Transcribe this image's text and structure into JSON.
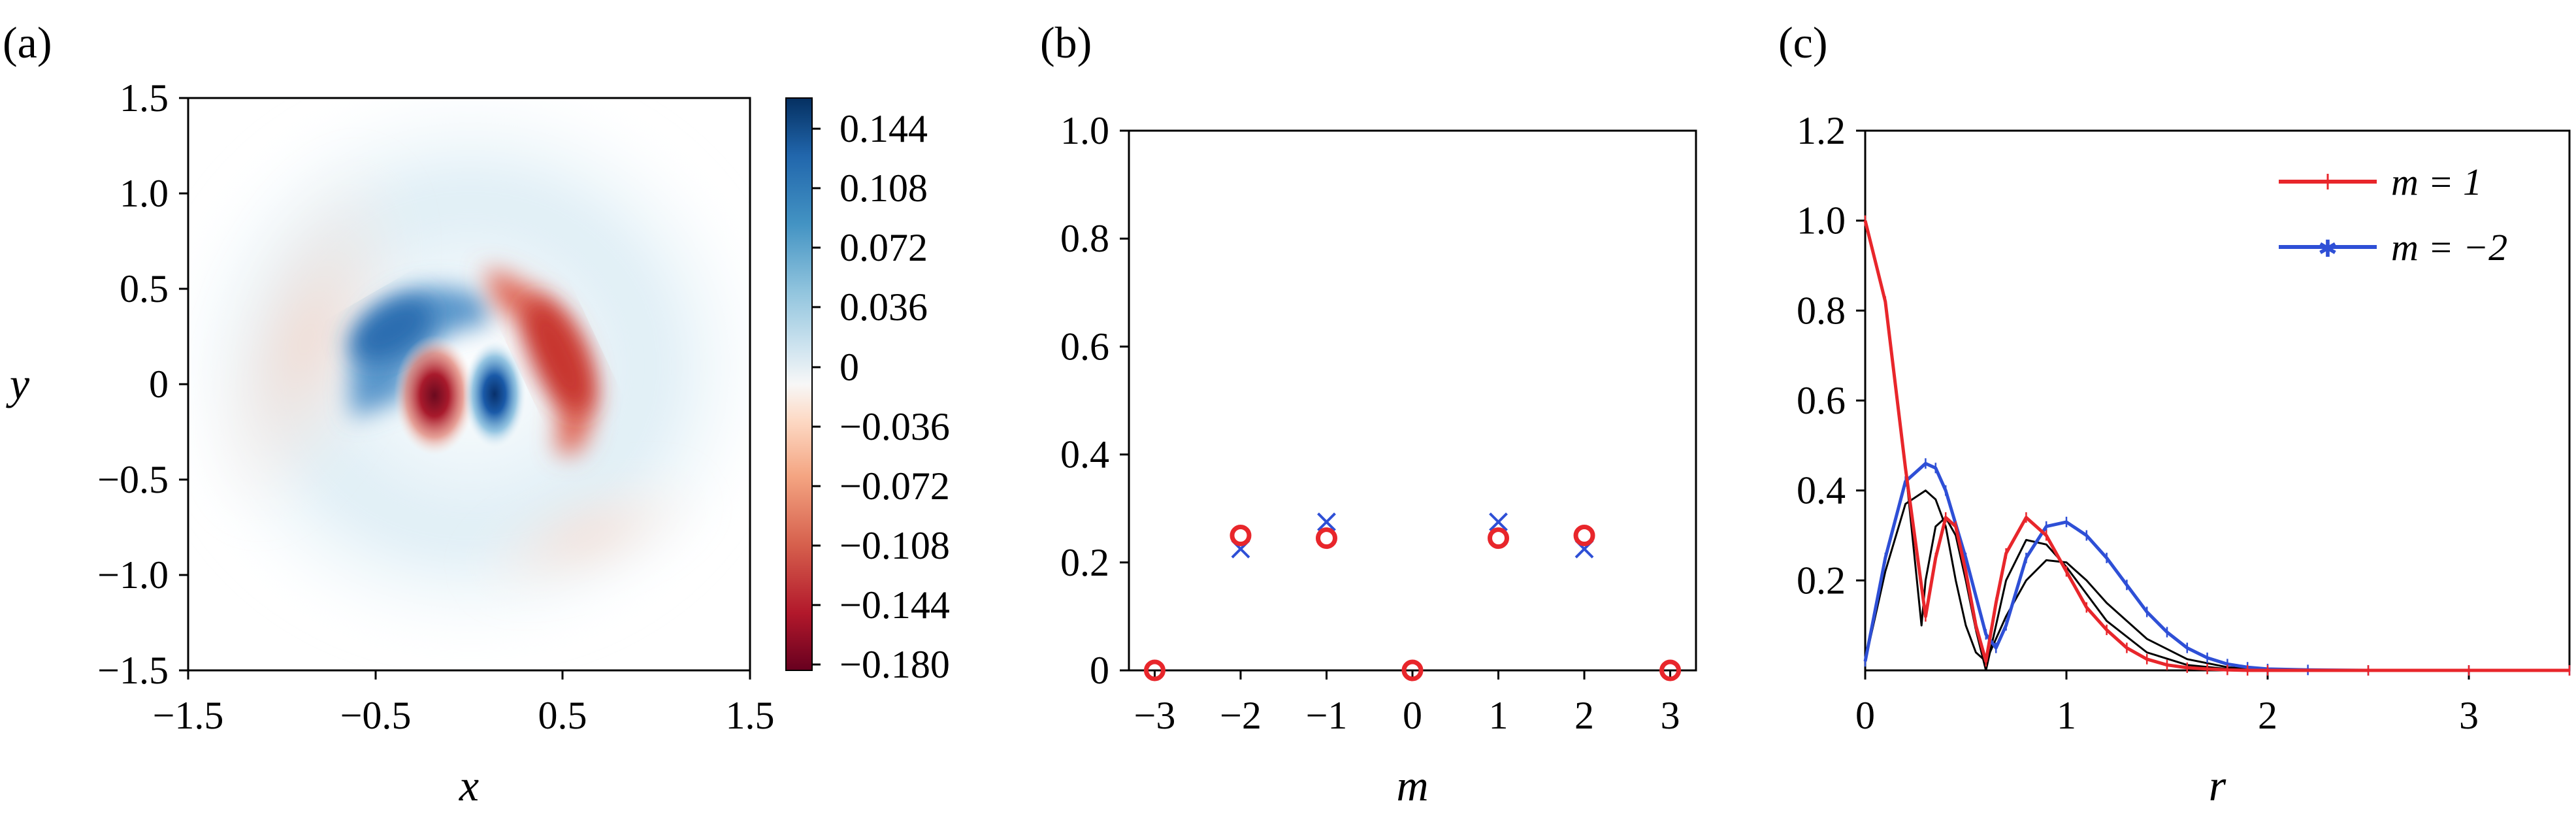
{
  "chart_data": [
    {
      "type": "heatmap",
      "panel_label": "(a)",
      "xlabel": "x",
      "ylabel": "y",
      "xlim": [
        -1.5,
        1.5
      ],
      "ylim": [
        -1.5,
        1.5
      ],
      "xticks": [
        "−1.5",
        "−0.5",
        "0.5",
        "1.5"
      ],
      "yticks": [
        "1.5",
        "1.0",
        "0.5",
        "0",
        "−0.5",
        "−1.0",
        "−1.5"
      ],
      "colorbar": {
        "ticks": [
          "0.144",
          "0.108",
          "0.072",
          "0.036",
          "0",
          "−0.036",
          "−0.072",
          "−0.108",
          "−0.144",
          "−0.180"
        ],
        "range": [
          -0.18,
          0.16
        ],
        "colors": [
          "#67001f",
          "#b2182b",
          "#d6604d",
          "#f4a582",
          "#fddbc7",
          "#f7f7f7",
          "#d1e5f0",
          "#92c5de",
          "#4393c3",
          "#2166ac",
          "#053061"
        ]
      },
      "features": [
        {
          "kind": "red core",
          "x": -0.18,
          "y": -0.05,
          "value": -0.18
        },
        {
          "kind": "blue core",
          "x": 0.15,
          "y": -0.05,
          "value": 0.15
        },
        {
          "kind": "blue arc",
          "x": -0.25,
          "y": 0.2,
          "value": 0.09
        },
        {
          "kind": "red arc",
          "x": 0.48,
          "y": 0.3,
          "value": -0.1
        }
      ]
    },
    {
      "type": "scatter",
      "panel_label": "(b)",
      "xlabel": "m",
      "ylabel": "",
      "xlim": [
        -3.3,
        3.3
      ],
      "ylim": [
        0,
        1.0
      ],
      "xticks": [
        "−3",
        "−2",
        "−1",
        "0",
        "1",
        "2",
        "3"
      ],
      "yticks": [
        "1.0",
        "0.8",
        "0.6",
        "0.4",
        "0.2",
        "0"
      ],
      "series": [
        {
          "marker": "circle",
          "color": "#e8262b",
          "x": [
            -3,
            -2,
            -1,
            0,
            1,
            2,
            3
          ],
          "values": [
            0.0,
            0.25,
            0.245,
            0.0,
            0.245,
            0.25,
            0.0
          ]
        },
        {
          "marker": "cross",
          "color": "#2e4fd6",
          "x": [
            -2,
            -1,
            1,
            2
          ],
          "values": [
            0.225,
            0.275,
            0.275,
            0.225
          ]
        }
      ]
    },
    {
      "type": "line",
      "panel_label": "(c)",
      "xlabel": "r",
      "ylabel": "",
      "xlim": [
        0,
        3.5
      ],
      "ylim": [
        0,
        1.2
      ],
      "xticks": [
        "0",
        "1",
        "2",
        "3"
      ],
      "yticks": [
        "1.2",
        "1.0",
        "0.8",
        "0.6",
        "0.4",
        "0.2"
      ],
      "legend_position": "top-right",
      "series": [
        {
          "name": "m = 1",
          "color": "#e8262b",
          "marker": "plus",
          "x": [
            0,
            0.1,
            0.2,
            0.3,
            0.35,
            0.4,
            0.45,
            0.5,
            0.55,
            0.6,
            0.65,
            0.7,
            0.8,
            0.9,
            1.0,
            1.1,
            1.2,
            1.3,
            1.4,
            1.5,
            1.6,
            1.7,
            1.8,
            1.9,
            2.0,
            2.5,
            3.0,
            3.5
          ],
          "values": [
            1.0,
            0.82,
            0.45,
            0.12,
            0.25,
            0.34,
            0.32,
            0.22,
            0.1,
            0.02,
            0.15,
            0.26,
            0.34,
            0.3,
            0.22,
            0.14,
            0.09,
            0.05,
            0.025,
            0.012,
            0.006,
            0.003,
            0.001,
            0.0,
            0.0,
            0.0,
            0.0,
            0.0
          ]
        },
        {
          "name": "m = −2",
          "color": "#2e4fd6",
          "marker": "star",
          "x": [
            0,
            0.1,
            0.2,
            0.3,
            0.35,
            0.4,
            0.5,
            0.6,
            0.65,
            0.7,
            0.8,
            0.9,
            1.0,
            1.1,
            1.2,
            1.3,
            1.4,
            1.5,
            1.6,
            1.7,
            1.8,
            1.9,
            2.0,
            2.2,
            2.5,
            3.0,
            3.5
          ],
          "values": [
            0.02,
            0.25,
            0.42,
            0.46,
            0.45,
            0.4,
            0.25,
            0.08,
            0.05,
            0.1,
            0.25,
            0.32,
            0.33,
            0.3,
            0.25,
            0.19,
            0.13,
            0.085,
            0.05,
            0.028,
            0.014,
            0.007,
            0.003,
            0.001,
            0.0,
            0.0,
            0.0
          ]
        },
        {
          "color": "#000000",
          "marker": "none",
          "x": [
            0,
            0.1,
            0.2,
            0.28,
            0.3,
            0.35,
            0.4,
            0.45,
            0.5,
            0.55,
            0.6,
            0.65,
            0.7,
            0.8,
            0.9,
            1.0,
            1.1,
            1.2,
            1.4,
            1.6,
            1.8,
            2.0,
            2.5,
            3.5
          ],
          "values": [
            1.0,
            0.82,
            0.45,
            0.1,
            0.2,
            0.32,
            0.34,
            0.3,
            0.2,
            0.09,
            0.0,
            0.1,
            0.2,
            0.29,
            0.28,
            0.23,
            0.17,
            0.11,
            0.04,
            0.012,
            0.003,
            0.0,
            0.0,
            0.0
          ]
        },
        {
          "color": "#000000",
          "marker": "none",
          "x": [
            0,
            0.1,
            0.2,
            0.3,
            0.35,
            0.4,
            0.45,
            0.5,
            0.55,
            0.6,
            0.65,
            0.7,
            0.8,
            0.9,
            1.0,
            1.1,
            1.2,
            1.4,
            1.6,
            1.8,
            2.0,
            2.5,
            3.5
          ],
          "values": [
            0.02,
            0.22,
            0.37,
            0.4,
            0.38,
            0.32,
            0.2,
            0.1,
            0.04,
            0.02,
            0.07,
            0.12,
            0.2,
            0.245,
            0.24,
            0.2,
            0.15,
            0.07,
            0.025,
            0.007,
            0.001,
            0.0,
            0.0
          ]
        }
      ]
    }
  ]
}
